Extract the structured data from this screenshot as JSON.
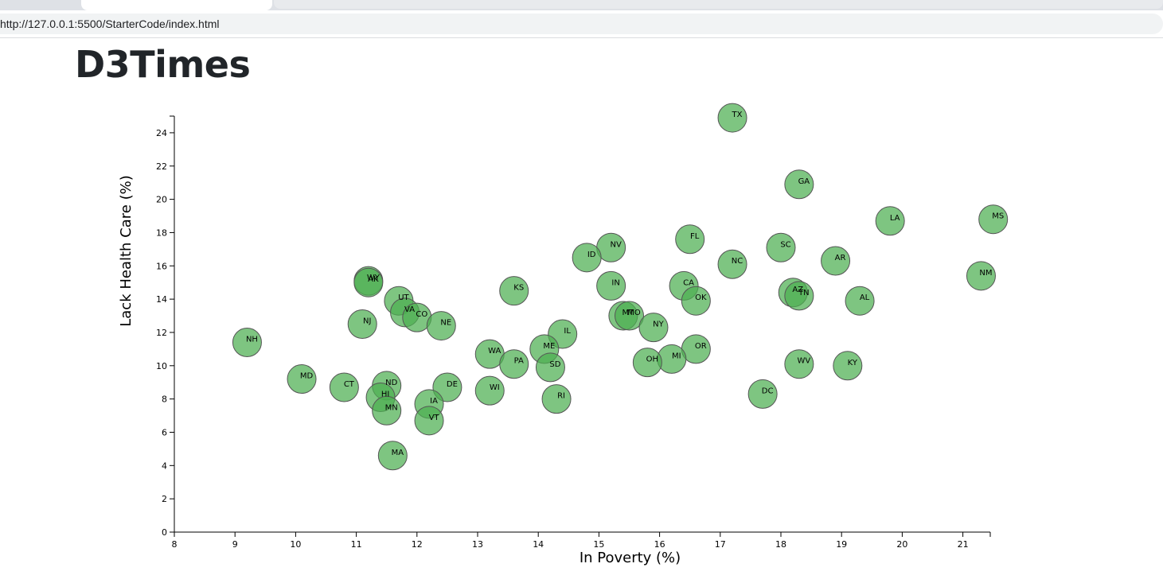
{
  "browser": {
    "url": "http://127.0.0.1:5500/StarterCode/index.html"
  },
  "page": {
    "title": "D3Times"
  },
  "colors": {
    "marker_fill": "#4CAF50",
    "marker_stroke": "#555555"
  },
  "chart_data": {
    "type": "scatter",
    "xlabel": "In Poverty (%)",
    "ylabel": "Lack Health Care (%)",
    "xlim": [
      8,
      21.5
    ],
    "ylim": [
      0,
      25
    ],
    "x_ticks": [
      8,
      9,
      10,
      11,
      12,
      13,
      14,
      15,
      16,
      17,
      18,
      19,
      20,
      21
    ],
    "y_ticks": [
      0,
      2,
      4,
      6,
      8,
      10,
      12,
      14,
      16,
      18,
      20,
      22,
      24
    ],
    "grid": false,
    "points": [
      {
        "abbr": "TX",
        "x": 17.2,
        "y": 24.9
      },
      {
        "abbr": "GA",
        "x": 18.3,
        "y": 20.9
      },
      {
        "abbr": "MS",
        "x": 21.5,
        "y": 18.8
      },
      {
        "abbr": "LA",
        "x": 19.8,
        "y": 18.7
      },
      {
        "abbr": "FL",
        "x": 16.5,
        "y": 17.6
      },
      {
        "abbr": "NV",
        "x": 15.2,
        "y": 17.1
      },
      {
        "abbr": "SC",
        "x": 18.0,
        "y": 17.1
      },
      {
        "abbr": "ID",
        "x": 14.8,
        "y": 16.5
      },
      {
        "abbr": "AR",
        "x": 18.9,
        "y": 16.3
      },
      {
        "abbr": "NC",
        "x": 17.2,
        "y": 16.1
      },
      {
        "abbr": "NM",
        "x": 21.3,
        "y": 15.4
      },
      {
        "abbr": "WY",
        "x": 11.2,
        "y": 15.1
      },
      {
        "abbr": "AK",
        "x": 11.2,
        "y": 15.0
      },
      {
        "abbr": "IN",
        "x": 15.2,
        "y": 14.8
      },
      {
        "abbr": "CA",
        "x": 16.4,
        "y": 14.8
      },
      {
        "abbr": "KS",
        "x": 13.6,
        "y": 14.5
      },
      {
        "abbr": "AZ",
        "x": 18.2,
        "y": 14.4
      },
      {
        "abbr": "TN",
        "x": 18.3,
        "y": 14.2
      },
      {
        "abbr": "OK",
        "x": 16.6,
        "y": 13.9
      },
      {
        "abbr": "AL",
        "x": 19.3,
        "y": 13.9
      },
      {
        "abbr": "UT",
        "x": 11.7,
        "y": 13.9
      },
      {
        "abbr": "VA",
        "x": 11.8,
        "y": 13.2
      },
      {
        "abbr": "MT",
        "x": 15.4,
        "y": 13.0
      },
      {
        "abbr": "MO",
        "x": 15.5,
        "y": 13.0
      },
      {
        "abbr": "CO",
        "x": 12.0,
        "y": 12.9
      },
      {
        "abbr": "NJ",
        "x": 11.1,
        "y": 12.5
      },
      {
        "abbr": "NE",
        "x": 12.4,
        "y": 12.4
      },
      {
        "abbr": "NY",
        "x": 15.9,
        "y": 12.3
      },
      {
        "abbr": "IL",
        "x": 14.4,
        "y": 11.9
      },
      {
        "abbr": "NH",
        "x": 9.2,
        "y": 11.4
      },
      {
        "abbr": "ME",
        "x": 14.1,
        "y": 11.0
      },
      {
        "abbr": "OR",
        "x": 16.6,
        "y": 11.0
      },
      {
        "abbr": "WA",
        "x": 13.2,
        "y": 10.7
      },
      {
        "abbr": "MI",
        "x": 16.2,
        "y": 10.4
      },
      {
        "abbr": "OH",
        "x": 15.8,
        "y": 10.2
      },
      {
        "abbr": "PA",
        "x": 13.6,
        "y": 10.1
      },
      {
        "abbr": "WV",
        "x": 18.3,
        "y": 10.1
      },
      {
        "abbr": "KY",
        "x": 19.1,
        "y": 10.0
      },
      {
        "abbr": "SD",
        "x": 14.2,
        "y": 9.9
      },
      {
        "abbr": "MD",
        "x": 10.1,
        "y": 9.2
      },
      {
        "abbr": "ND",
        "x": 11.5,
        "y": 8.8
      },
      {
        "abbr": "CT",
        "x": 10.8,
        "y": 8.7
      },
      {
        "abbr": "DE",
        "x": 12.5,
        "y": 8.7
      },
      {
        "abbr": "WI",
        "x": 13.2,
        "y": 8.5
      },
      {
        "abbr": "DC",
        "x": 17.7,
        "y": 8.3
      },
      {
        "abbr": "HI",
        "x": 11.4,
        "y": 8.1
      },
      {
        "abbr": "RI",
        "x": 14.3,
        "y": 8.0
      },
      {
        "abbr": "IA",
        "x": 12.2,
        "y": 7.7
      },
      {
        "abbr": "MN",
        "x": 11.5,
        "y": 7.3
      },
      {
        "abbr": "VT",
        "x": 12.2,
        "y": 6.7
      },
      {
        "abbr": "MA",
        "x": 11.6,
        "y": 4.6
      }
    ]
  }
}
